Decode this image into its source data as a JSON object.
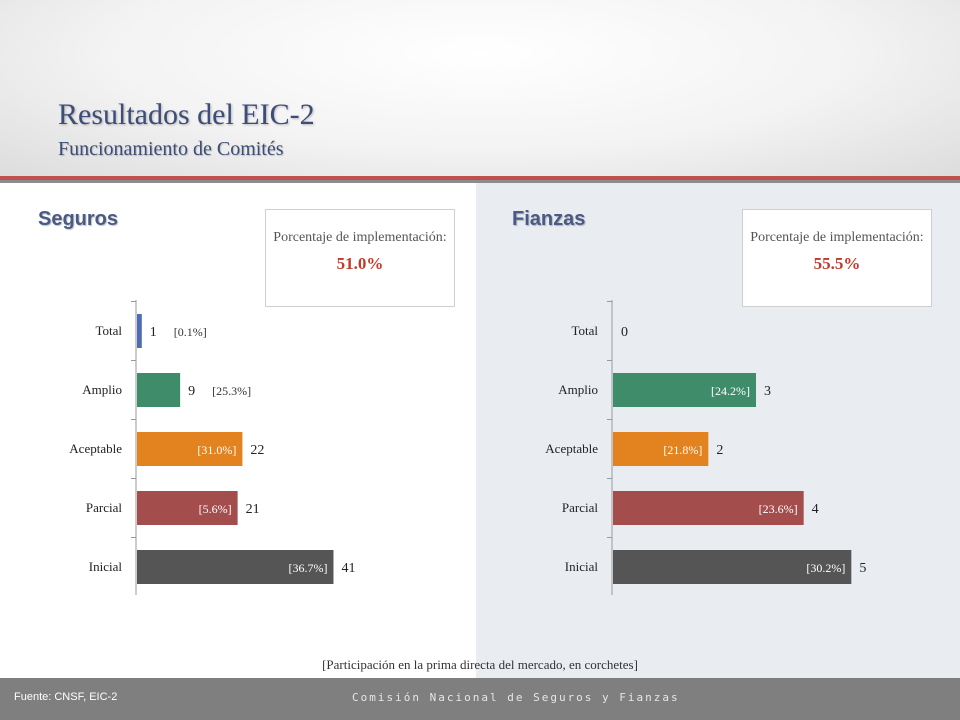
{
  "header": {
    "title": "Resultados del EIC-2",
    "subtitle": "Funcionamiento de Comités"
  },
  "seguros": {
    "heading": "Seguros",
    "pct_label": "Porcentaje de implementación:",
    "pct_value": "51.0%"
  },
  "fianzas": {
    "heading": "Fianzas",
    "pct_label": "Porcentaje de implementación:",
    "pct_value": "55.5%"
  },
  "footnote": "[Participación en la prima directa del mercado, en corchetes]",
  "footer": {
    "source": "Fuente: CNSF, EIC-2",
    "org": "Comisión Nacional de Seguros y Fianzas"
  },
  "colors": {
    "Total": "#4f6bb3",
    "Amplio": "#3f8c6b",
    "Aceptable": "#e2831f",
    "Parcial": "#a34d4d",
    "Inicial": "#555555"
  },
  "chart_data": [
    {
      "type": "bar",
      "orientation": "horizontal",
      "section": "Seguros",
      "categories": [
        "Total",
        "Amplio",
        "Aceptable",
        "Parcial",
        "Inicial"
      ],
      "values": [
        1,
        9,
        22,
        21,
        41
      ],
      "labels": [
        "[0.1%]",
        "[25.3%]",
        "[31.0%]",
        "[5.6%]",
        "[36.7%]"
      ],
      "xlim": [
        0,
        48
      ]
    },
    {
      "type": "bar",
      "orientation": "horizontal",
      "section": "Fianzas",
      "categories": [
        "Total",
        "Amplio",
        "Aceptable",
        "Parcial",
        "Inicial"
      ],
      "values": [
        0,
        3,
        2,
        4,
        5
      ],
      "labels": [
        "",
        "[24.2%]",
        "[21.8%]",
        "[23.6%]",
        "[30.2%]"
      ],
      "xlim": [
        0,
        6
      ]
    }
  ]
}
